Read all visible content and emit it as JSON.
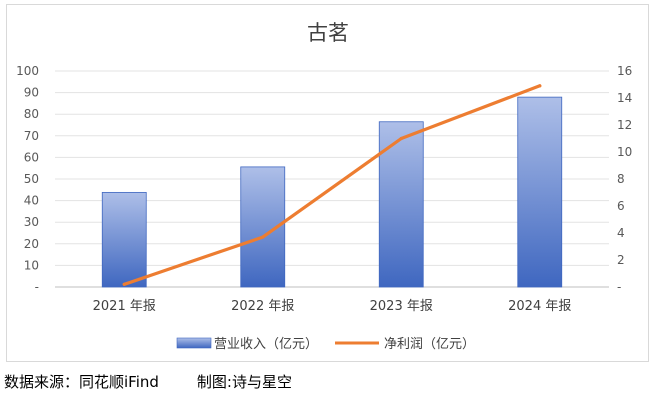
{
  "chart_data": {
    "type": "bar+line",
    "title": "古茗",
    "categories": [
      "2021 年报",
      "2022 年报",
      "2023 年报",
      "2024 年报"
    ],
    "series": [
      {
        "name": "营业收入（亿元）",
        "type": "bar",
        "axis": "left",
        "values": [
          43.8,
          55.6,
          76.5,
          87.9
        ],
        "color": "#4472c4"
      },
      {
        "name": "净利润（亿元）",
        "type": "line",
        "axis": "right",
        "values": [
          0.2,
          3.7,
          11.0,
          14.9
        ],
        "color": "#ed7d31"
      }
    ],
    "y_left": {
      "ylim": [
        0,
        100
      ],
      "ticks": [
        "-",
        "10",
        "20",
        "30",
        "40",
        "50",
        "60",
        "70",
        "80",
        "90",
        "100"
      ]
    },
    "y_right": {
      "ylim": [
        0,
        16
      ],
      "ticks": [
        "-",
        "2",
        "4",
        "6",
        "8",
        "10",
        "12",
        "14",
        "16"
      ]
    },
    "grid": true,
    "legend_position": "bottom"
  },
  "footer": {
    "source": "数据来源：同花顺iFind",
    "maker": "制图:诗与星空"
  }
}
